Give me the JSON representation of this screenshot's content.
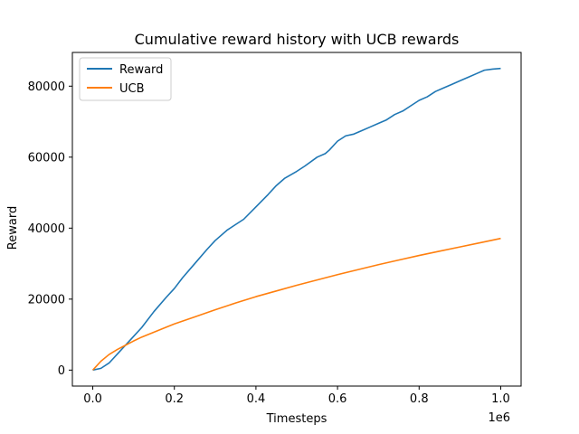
{
  "chart_data": {
    "type": "line",
    "title": "Cumulative reward history with UCB rewards",
    "xlabel": "Timesteps",
    "ylabel": "Reward",
    "x_offset_label": "1e6",
    "xlim": [
      -0.05,
      1.05
    ],
    "ylim": [
      -4500,
      89500
    ],
    "x_ticks": [
      0.0,
      0.2,
      0.4,
      0.6,
      0.8,
      1.0
    ],
    "x_tick_labels": [
      "0.0",
      "0.2",
      "0.4",
      "0.6",
      "0.8",
      "1.0"
    ],
    "y_ticks": [
      0,
      20000,
      40000,
      60000,
      80000
    ],
    "y_tick_labels": [
      "0",
      "20000",
      "40000",
      "60000",
      "80000"
    ],
    "grid": false,
    "legend_position": "top-left",
    "series": [
      {
        "name": "Reward",
        "color": "#1f77b4",
        "x": [
          0.0,
          0.02,
          0.04,
          0.06,
          0.08,
          0.1,
          0.12,
          0.15,
          0.18,
          0.2,
          0.22,
          0.25,
          0.28,
          0.3,
          0.33,
          0.35,
          0.37,
          0.4,
          0.43,
          0.45,
          0.47,
          0.5,
          0.52,
          0.55,
          0.57,
          0.58,
          0.6,
          0.62,
          0.64,
          0.66,
          0.68,
          0.7,
          0.72,
          0.74,
          0.76,
          0.78,
          0.8,
          0.82,
          0.84,
          0.86,
          0.88,
          0.9,
          0.92,
          0.94,
          0.96,
          0.98,
          1.0
        ],
        "y": [
          0,
          500,
          2000,
          4500,
          7000,
          9500,
          12000,
          16500,
          20500,
          23000,
          26000,
          30000,
          34000,
          36500,
          39500,
          41000,
          42500,
          46000,
          49500,
          52000,
          54000,
          56000,
          57500,
          60000,
          61000,
          62000,
          64500,
          66000,
          66500,
          67500,
          68500,
          69500,
          70500,
          72000,
          73000,
          74500,
          76000,
          77000,
          78500,
          79500,
          80500,
          81500,
          82500,
          83500,
          84500,
          84800,
          85000
        ]
      },
      {
        "name": "UCB",
        "color": "#ff7f0e",
        "x": [
          0.0,
          0.02,
          0.04,
          0.06,
          0.08,
          0.1,
          0.12,
          0.15,
          0.18,
          0.2,
          0.25,
          0.3,
          0.35,
          0.4,
          0.45,
          0.5,
          0.55,
          0.6,
          0.65,
          0.7,
          0.75,
          0.8,
          0.85,
          0.9,
          0.95,
          1.0
        ],
        "y": [
          0,
          2500,
          4400,
          5800,
          7000,
          8200,
          9300,
          10700,
          12100,
          13000,
          15000,
          17000,
          18900,
          20700,
          22300,
          23900,
          25400,
          26900,
          28300,
          29700,
          31000,
          32300,
          33500,
          34700,
          35900,
          37100
        ]
      }
    ]
  }
}
